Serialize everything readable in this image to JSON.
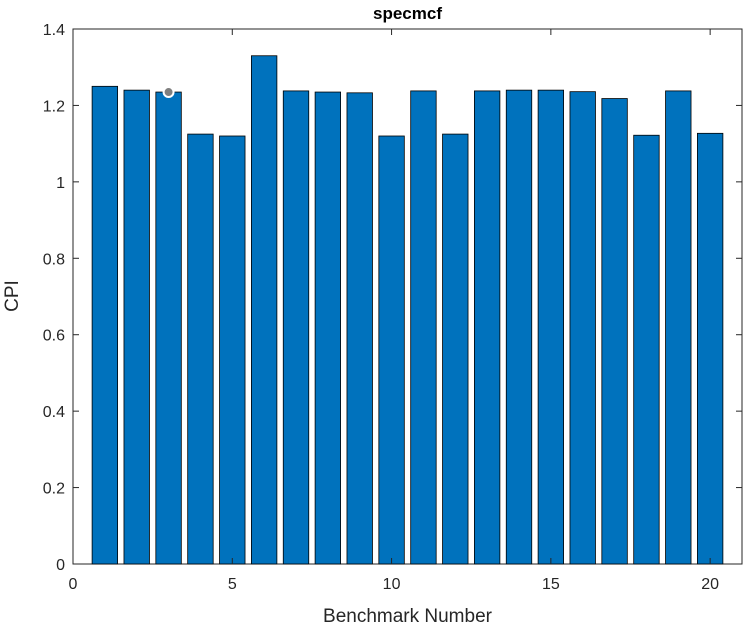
{
  "chart_data": {
    "type": "bar",
    "title": "specmcf",
    "xlabel": "Benchmark Number",
    "ylabel": "CPI",
    "categories": [
      1,
      2,
      3,
      4,
      5,
      6,
      7,
      8,
      9,
      10,
      11,
      12,
      13,
      14,
      15,
      16,
      17,
      18,
      19,
      20
    ],
    "values": [
      1.25,
      1.24,
      1.235,
      1.125,
      1.12,
      1.33,
      1.238,
      1.235,
      1.233,
      1.12,
      1.238,
      1.125,
      1.238,
      1.24,
      1.24,
      1.236,
      1.218,
      1.122,
      1.238,
      1.127
    ],
    "xlim": [
      0,
      21
    ],
    "ylim": [
      0,
      1.4
    ],
    "xticks": [
      "0",
      "5",
      "10",
      "15",
      "20"
    ],
    "yticks": [
      "0",
      "0.2",
      "0.4",
      "0.6",
      "0.8",
      "1",
      "1.2",
      "1.4"
    ],
    "bar_color": "#0072BD",
    "grid": false,
    "marker": {
      "x": 3,
      "y": 1.235
    }
  }
}
